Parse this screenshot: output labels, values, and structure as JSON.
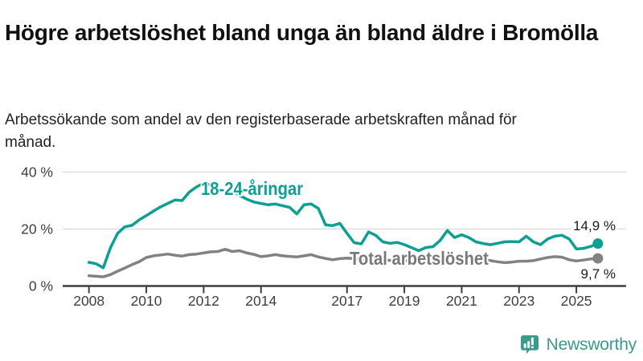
{
  "header": {
    "title": "Högre arbetslöshet bland unga än bland äldre i Bromölla",
    "subtitle": "Arbetssökande som andel av den registerbaserade arbetskraften månad för månad."
  },
  "chart_data": {
    "type": "line",
    "title": "Högre arbetslöshet bland unga än bland äldre i Bromölla",
    "subtitle": "Arbetssökande som andel av den registerbaserade arbetskraften månad för månad.",
    "unit": "%",
    "grid": "horizontal",
    "legend_position": "inline-labels-on-lines",
    "x_start": 2008.0,
    "x_step_years": 0.25,
    "xlim": [
      2007.08,
      2026.7
    ],
    "ylim": [
      0,
      42
    ],
    "x_tick_years": [
      2008,
      2010,
      2012,
      2014,
      2017,
      2019,
      2021,
      2023,
      2025
    ],
    "x_tick_labels": [
      "2008",
      "2010",
      "2012",
      "2014",
      "2017",
      "2019",
      "2021",
      "2023",
      "2025"
    ],
    "y_tick_values": [
      0,
      20,
      40
    ],
    "y_tick_labels": [
      "0 %",
      "20 %",
      "40 %"
    ],
    "series": [
      {
        "name": "18-24-åringar",
        "color": "#0d9e94",
        "end_value": 14.9,
        "end_label": "14,9 %",
        "values": [
          8.3,
          7.8,
          6.4,
          13.5,
          18.5,
          20.8,
          21.3,
          23.2,
          24.7,
          26.3,
          27.8,
          29.0,
          30.2,
          30.0,
          33.0,
          34.8,
          36.1,
          35.6,
          34.3,
          33.3,
          33.6,
          31.8,
          30.5,
          29.5,
          29.0,
          28.5,
          28.8,
          28.2,
          27.6,
          25.3,
          28.5,
          28.8,
          27.2,
          21.5,
          21.2,
          22.0,
          18.5,
          15.2,
          14.8,
          19.0,
          17.8,
          15.5,
          15.0,
          15.3,
          14.5,
          13.5,
          12.4,
          13.5,
          13.8,
          16.0,
          19.5,
          17.0,
          18.0,
          17.0,
          15.5,
          14.9,
          14.5,
          15.0,
          15.5,
          15.6,
          15.5,
          17.5,
          15.5,
          14.5,
          16.5,
          17.5,
          17.8,
          16.5,
          13.0,
          13.2,
          13.9,
          14.9
        ]
      },
      {
        "name": "Total arbetslöshet",
        "color": "#828282",
        "end_value": 9.7,
        "end_label": "9,7 %",
        "values": [
          3.6,
          3.4,
          3.2,
          4.0,
          5.2,
          6.3,
          7.5,
          8.5,
          10.0,
          10.6,
          10.9,
          11.2,
          10.8,
          10.5,
          11.0,
          11.2,
          11.6,
          12.0,
          12.1,
          12.9,
          12.1,
          12.4,
          11.6,
          11.1,
          10.3,
          10.6,
          11.0,
          10.6,
          10.4,
          10.2,
          10.6,
          11.0,
          10.2,
          9.7,
          9.2,
          9.6,
          9.8,
          9.6,
          9.4,
          9.3,
          9.5,
          9.2,
          9.0,
          9.1,
          9.0,
          8.8,
          8.7,
          8.9,
          9.2,
          10.2,
          10.8,
          10.5,
          10.3,
          10.0,
          9.5,
          9.2,
          8.9,
          8.5,
          8.2,
          8.4,
          8.7,
          8.7,
          8.9,
          9.5,
          10.0,
          10.3,
          10.1,
          9.2,
          8.8,
          9.1,
          9.5,
          9.7
        ]
      }
    ]
  },
  "colors": {
    "accent_teal": "#0d9e94",
    "line_gray": "#828282",
    "axis": "#3f3f3f",
    "gridline": "#d9d9d9",
    "text_dark": "#111111"
  },
  "logo": {
    "text": "Newsworthy",
    "color": "#3a9a8d",
    "icon": "newsworthy-speech-bubble-chart-icon"
  }
}
